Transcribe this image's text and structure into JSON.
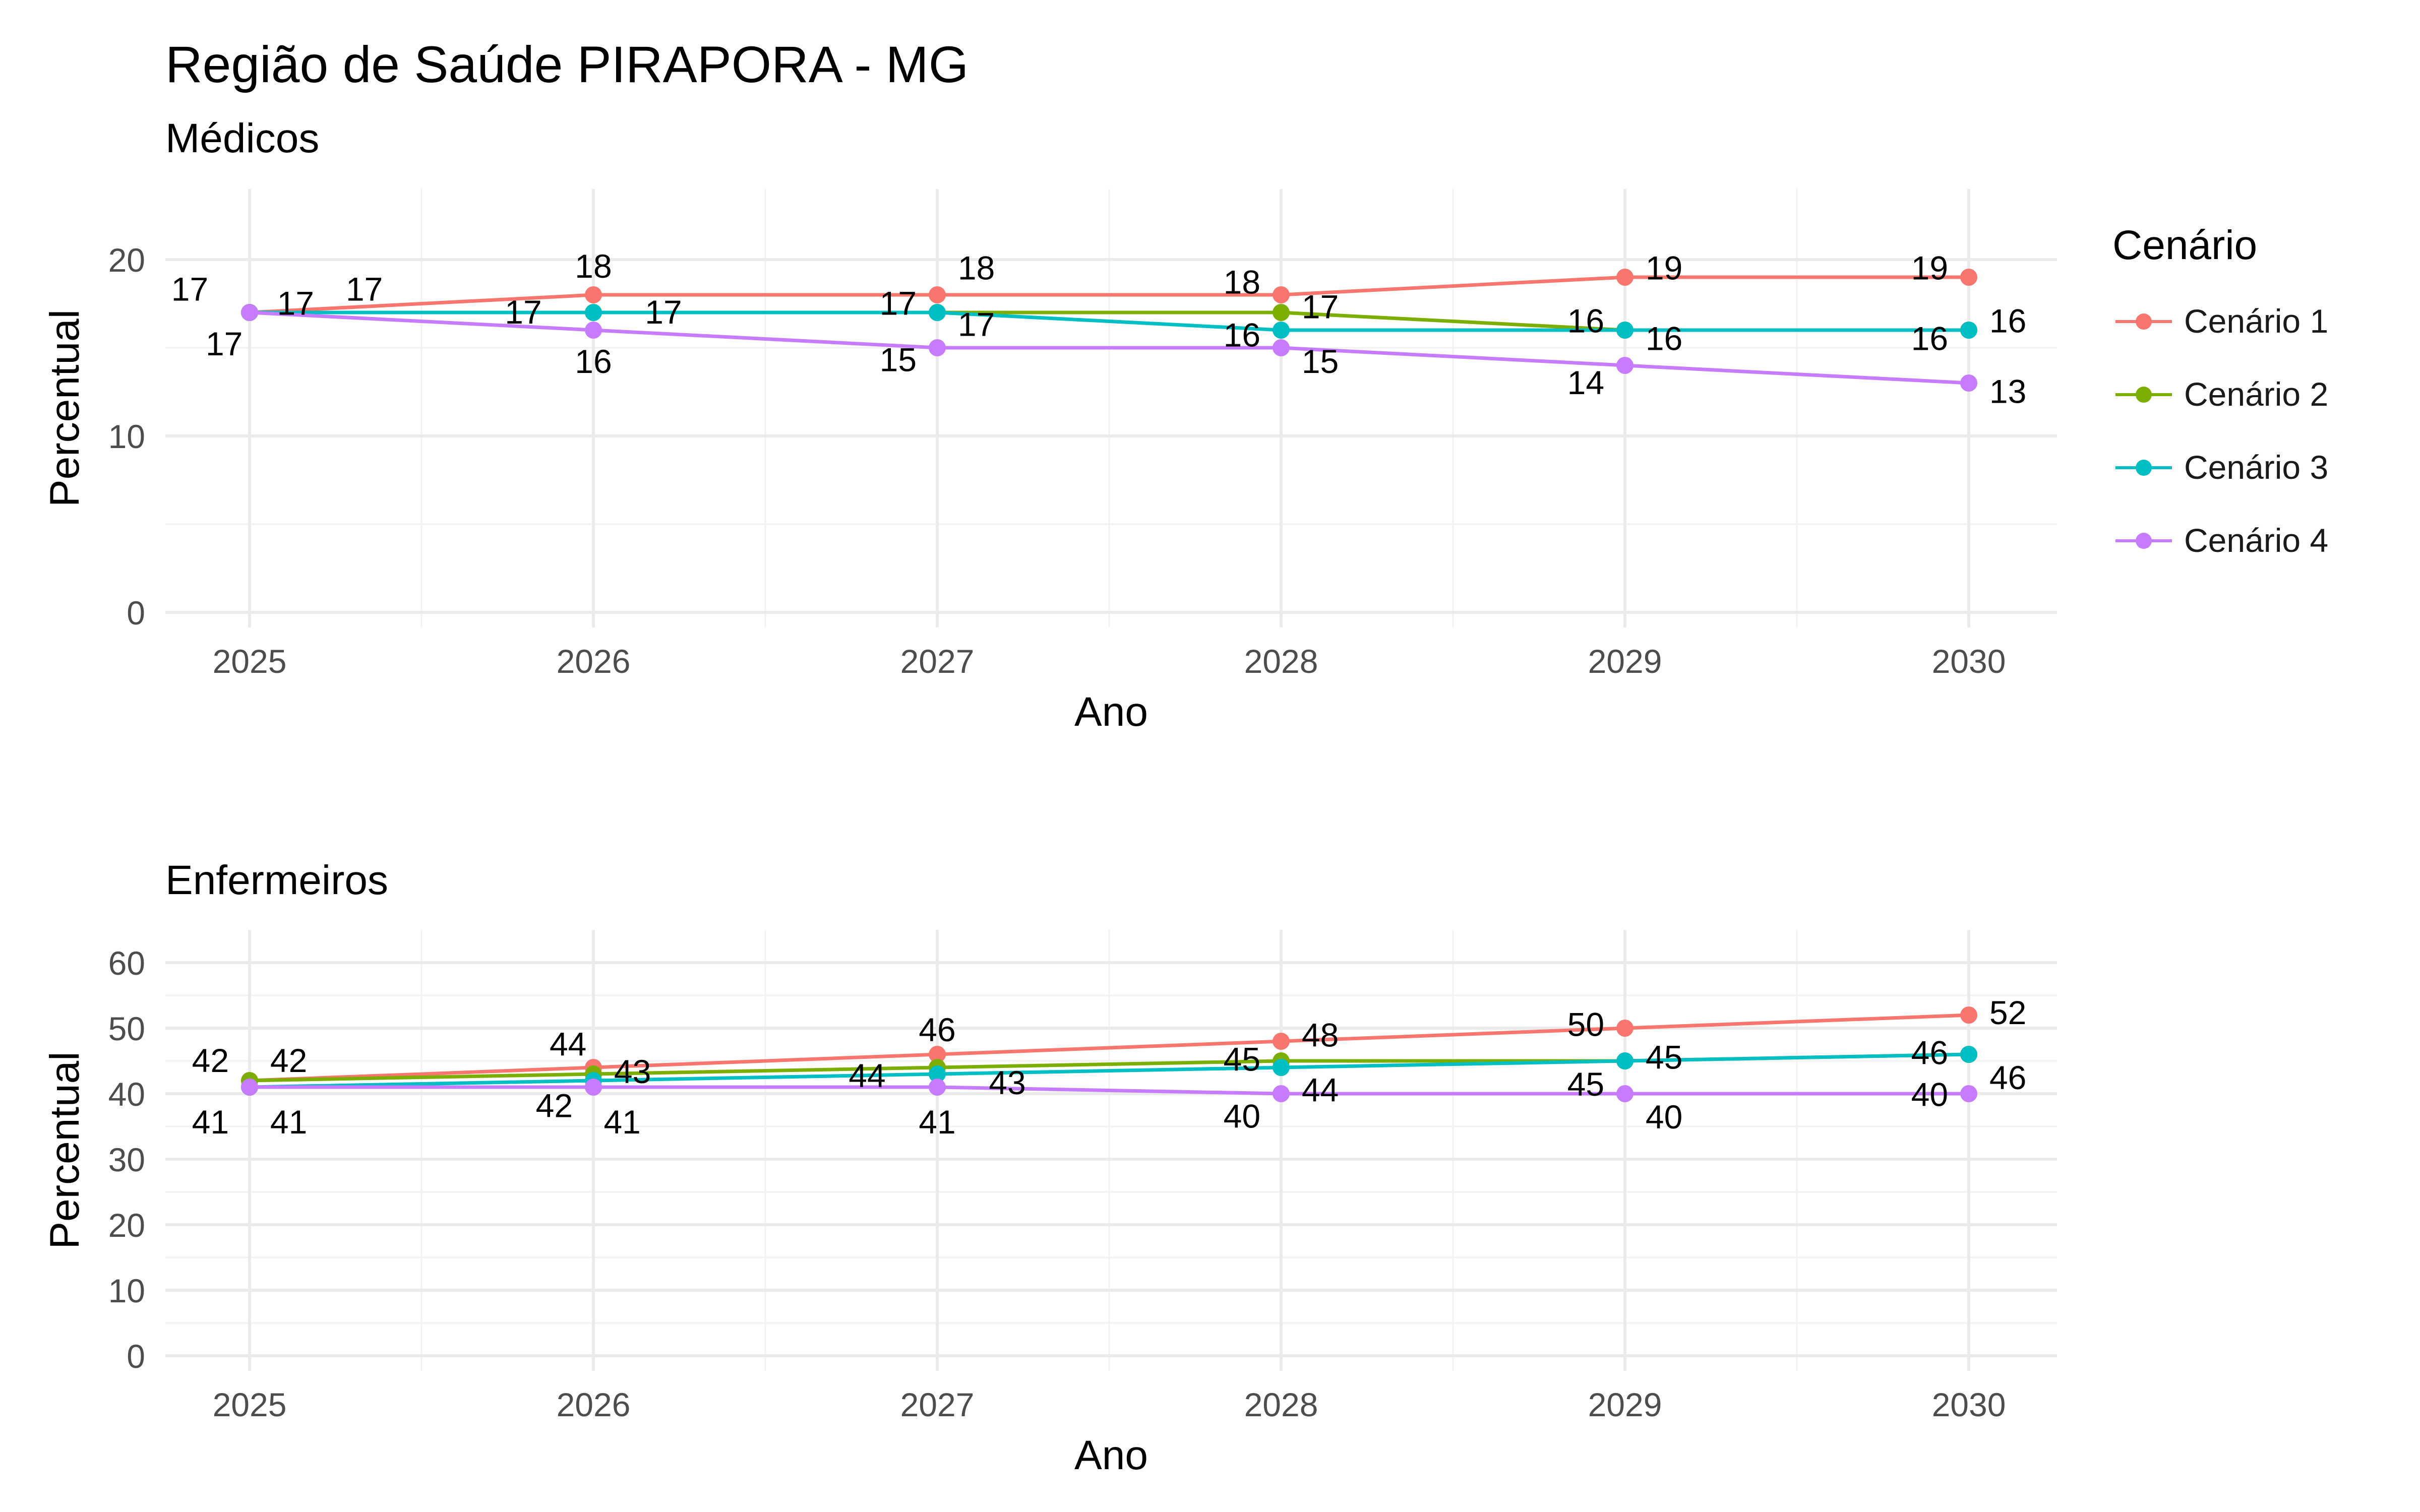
{
  "title": "Região de Saúde PIRAPORA - MG",
  "legend": {
    "title": "Cenário",
    "items": [
      "Cenário 1",
      "Cenário 2",
      "Cenário 3",
      "Cenário 4"
    ]
  },
  "colors": {
    "Cenário 1": "#F8766D",
    "Cenário 2": "#7CAE00",
    "Cenário 3": "#00BFC4",
    "Cenário 4": "#C77CFF"
  },
  "chart_data": [
    {
      "type": "line",
      "title": "Médicos",
      "xlabel": "Ano",
      "ylabel": "Percentual",
      "x": [
        2025,
        2026,
        2027,
        2028,
        2029,
        2030
      ],
      "ylim": [
        0,
        24
      ],
      "yticks": [
        0,
        10,
        20
      ],
      "grid": true,
      "legend_position": "right",
      "series": [
        {
          "name": "Cenário 1",
          "values": [
            17,
            18,
            18,
            18,
            19,
            19
          ]
        },
        {
          "name": "Cenário 2",
          "values": [
            17,
            17,
            17,
            17,
            16,
            16
          ]
        },
        {
          "name": "Cenário 3",
          "values": [
            17,
            17,
            17,
            16,
            16,
            16
          ]
        },
        {
          "name": "Cenário 4",
          "values": [
            17,
            16,
            15,
            15,
            14,
            13
          ]
        }
      ],
      "annotations": [
        {
          "text": "17",
          "x": 2025,
          "y": 17,
          "anchor": "end",
          "dx": -0.12,
          "dy": 1.3
        },
        {
          "text": "17",
          "x": 2025,
          "y": 17,
          "anchor": "start",
          "dx": 0.08,
          "dy": 0.5
        },
        {
          "text": "17",
          "x": 2025,
          "y": 17,
          "anchor": "start",
          "dx": 0.28,
          "dy": 1.3
        },
        {
          "text": "17",
          "x": 2025,
          "y": 17,
          "anchor": "end",
          "dx": -0.02,
          "dy": -1.8
        },
        {
          "text": "18",
          "x": 2026,
          "y": 18,
          "anchor": "middle",
          "dx": 0,
          "dy": 1.6
        },
        {
          "text": "17",
          "x": 2026,
          "y": 17,
          "anchor": "end",
          "dx": -0.15,
          "dy": 0
        },
        {
          "text": "17",
          "x": 2026,
          "y": 17,
          "anchor": "start",
          "dx": 0.15,
          "dy": 0
        },
        {
          "text": "16",
          "x": 2026,
          "y": 16,
          "anchor": "middle",
          "dx": 0,
          "dy": -1.8
        },
        {
          "text": "17",
          "x": 2027,
          "y": 17,
          "anchor": "end",
          "dx": -0.06,
          "dy": 0.5
        },
        {
          "text": "18",
          "x": 2027,
          "y": 18,
          "anchor": "start",
          "dx": 0.06,
          "dy": 1.5
        },
        {
          "text": "17",
          "x": 2027,
          "y": 17,
          "anchor": "start",
          "dx": 0.06,
          "dy": -0.7
        },
        {
          "text": "15",
          "x": 2027,
          "y": 15,
          "anchor": "end",
          "dx": -0.06,
          "dy": -0.7
        },
        {
          "text": "18",
          "x": 2028,
          "y": 18,
          "anchor": "end",
          "dx": -0.06,
          "dy": 0.7
        },
        {
          "text": "17",
          "x": 2028,
          "y": 17,
          "anchor": "start",
          "dx": 0.06,
          "dy": 0.3
        },
        {
          "text": "16",
          "x": 2028,
          "y": 16,
          "anchor": "end",
          "dx": -0.06,
          "dy": -0.3
        },
        {
          "text": "15",
          "x": 2028,
          "y": 15,
          "anchor": "start",
          "dx": 0.06,
          "dy": -0.8
        },
        {
          "text": "19",
          "x": 2029,
          "y": 19,
          "anchor": "start",
          "dx": 0.06,
          "dy": 0.5
        },
        {
          "text": "16",
          "x": 2029,
          "y": 16,
          "anchor": "end",
          "dx": -0.06,
          "dy": 0.5
        },
        {
          "text": "16",
          "x": 2029,
          "y": 16,
          "anchor": "start",
          "dx": 0.06,
          "dy": -0.5
        },
        {
          "text": "14",
          "x": 2029,
          "y": 14,
          "anchor": "end",
          "dx": -0.06,
          "dy": -1.0
        },
        {
          "text": "19",
          "x": 2030,
          "y": 19,
          "anchor": "end",
          "dx": -0.06,
          "dy": 0.5
        },
        {
          "text": "16",
          "x": 2030,
          "y": 16,
          "anchor": "start",
          "dx": 0.06,
          "dy": 0.5
        },
        {
          "text": "16",
          "x": 2030,
          "y": 16,
          "anchor": "end",
          "dx": -0.06,
          "dy": -0.5
        },
        {
          "text": "13",
          "x": 2030,
          "y": 13,
          "anchor": "start",
          "dx": 0.06,
          "dy": -0.5
        }
      ]
    },
    {
      "type": "line",
      "title": "Enfermeiros",
      "xlabel": "Ano",
      "ylabel": "Percentual",
      "x": [
        2025,
        2026,
        2027,
        2028,
        2029,
        2030
      ],
      "ylim": [
        0,
        65
      ],
      "yticks": [
        0,
        10,
        20,
        30,
        40,
        50,
        60
      ],
      "grid": true,
      "legend_position": "right",
      "series": [
        {
          "name": "Cenário 1",
          "values": [
            42,
            44,
            46,
            48,
            50,
            52
          ]
        },
        {
          "name": "Cenário 2",
          "values": [
            42,
            43,
            44,
            45,
            45,
            46
          ]
        },
        {
          "name": "Cenário 3",
          "values": [
            41,
            42,
            43,
            44,
            45,
            46
          ]
        },
        {
          "name": "Cenário 4",
          "values": [
            41,
            41,
            41,
            40,
            40,
            40
          ]
        }
      ],
      "annotations": [
        {
          "text": "42",
          "x": 2025,
          "y": 42,
          "anchor": "end",
          "dx": -0.06,
          "dy": 3.0
        },
        {
          "text": "42",
          "x": 2025,
          "y": 42,
          "anchor": "start",
          "dx": 0.06,
          "dy": 3.0
        },
        {
          "text": "41",
          "x": 2025,
          "y": 41,
          "anchor": "end",
          "dx": -0.06,
          "dy": -5.4
        },
        {
          "text": "41",
          "x": 2025,
          "y": 41,
          "anchor": "start",
          "dx": 0.06,
          "dy": -5.4
        },
        {
          "text": "44",
          "x": 2026,
          "y": 44,
          "anchor": "end",
          "dx": -0.02,
          "dy": 3.5
        },
        {
          "text": "43",
          "x": 2026,
          "y": 43,
          "anchor": "start",
          "dx": 0.06,
          "dy": 0.3
        },
        {
          "text": "42",
          "x": 2026,
          "y": 42,
          "anchor": "end",
          "dx": -0.06,
          "dy": -3.9
        },
        {
          "text": "41",
          "x": 2026,
          "y": 41,
          "anchor": "start",
          "dx": 0.03,
          "dy": -5.4
        },
        {
          "text": "46",
          "x": 2027,
          "y": 46,
          "anchor": "middle",
          "dx": 0,
          "dy": 3.7
        },
        {
          "text": "44",
          "x": 2027,
          "y": 44,
          "anchor": "end",
          "dx": -0.15,
          "dy": -1.3
        },
        {
          "text": "43",
          "x": 2027,
          "y": 43,
          "anchor": "start",
          "dx": 0.15,
          "dy": -1.4
        },
        {
          "text": "41",
          "x": 2027,
          "y": 41,
          "anchor": "middle",
          "dx": 0,
          "dy": -5.4
        },
        {
          "text": "45",
          "x": 2028,
          "y": 45,
          "anchor": "end",
          "dx": -0.06,
          "dy": 0.2
        },
        {
          "text": "48",
          "x": 2028,
          "y": 48,
          "anchor": "start",
          "dx": 0.06,
          "dy": 0.9
        },
        {
          "text": "44",
          "x": 2028,
          "y": 44,
          "anchor": "start",
          "dx": 0.06,
          "dy": -3.5
        },
        {
          "text": "40",
          "x": 2028,
          "y": 40,
          "anchor": "end",
          "dx": -0.06,
          "dy": -3.5
        },
        {
          "text": "50",
          "x": 2029,
          "y": 50,
          "anchor": "end",
          "dx": -0.06,
          "dy": 0.5
        },
        {
          "text": "45",
          "x": 2029,
          "y": 45,
          "anchor": "start",
          "dx": 0.06,
          "dy": 0.5
        },
        {
          "text": "45",
          "x": 2029,
          "y": 45,
          "anchor": "end",
          "dx": -0.06,
          "dy": -3.6
        },
        {
          "text": "40",
          "x": 2029,
          "y": 40,
          "anchor": "start",
          "dx": 0.06,
          "dy": -3.6
        },
        {
          "text": "52",
          "x": 2030,
          "y": 52,
          "anchor": "start",
          "dx": 0.06,
          "dy": 0.3
        },
        {
          "text": "46",
          "x": 2030,
          "y": 46,
          "anchor": "end",
          "dx": -0.06,
          "dy": 0.2
        },
        {
          "text": "46",
          "x": 2030,
          "y": 46,
          "anchor": "start",
          "dx": 0.06,
          "dy": -3.6
        },
        {
          "text": "40",
          "x": 2030,
          "y": 40,
          "anchor": "end",
          "dx": -0.06,
          "dy": -0.2
        }
      ]
    }
  ]
}
